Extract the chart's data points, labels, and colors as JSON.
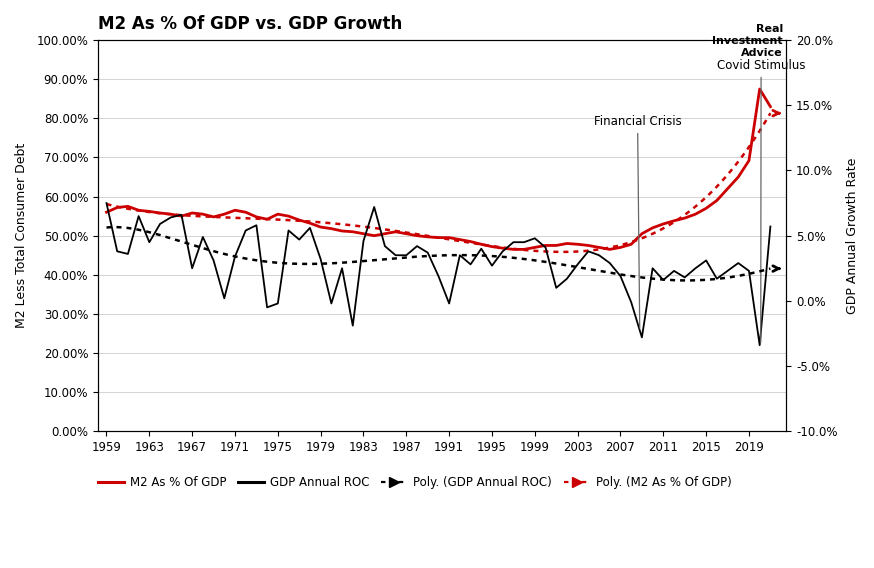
{
  "title": "M2 As % Of GDP vs. GDP Growth",
  "ylabel_left": "M2 Less Total Consumer Debt",
  "ylabel_right": "GDP Annual Growth Rate",
  "background_color": "#ffffff",
  "years": [
    1959,
    1960,
    1961,
    1962,
    1963,
    1964,
    1965,
    1966,
    1967,
    1968,
    1969,
    1970,
    1971,
    1972,
    1973,
    1974,
    1975,
    1976,
    1977,
    1978,
    1979,
    1980,
    1981,
    1982,
    1983,
    1984,
    1985,
    1986,
    1987,
    1988,
    1989,
    1990,
    1991,
    1992,
    1993,
    1994,
    1995,
    1996,
    1997,
    1998,
    1999,
    2000,
    2001,
    2002,
    2003,
    2004,
    2005,
    2006,
    2007,
    2008,
    2009,
    2010,
    2011,
    2012,
    2013,
    2014,
    2015,
    2016,
    2017,
    2018,
    2019,
    2020,
    2021
  ],
  "m2_pct_gdp": [
    0.56,
    0.572,
    0.575,
    0.565,
    0.562,
    0.558,
    0.555,
    0.55,
    0.558,
    0.555,
    0.548,
    0.555,
    0.565,
    0.56,
    0.548,
    0.542,
    0.555,
    0.55,
    0.54,
    0.532,
    0.522,
    0.518,
    0.512,
    0.51,
    0.505,
    0.5,
    0.505,
    0.51,
    0.505,
    0.5,
    0.497,
    0.495,
    0.495,
    0.49,
    0.485,
    0.478,
    0.472,
    0.468,
    0.465,
    0.465,
    0.47,
    0.475,
    0.475,
    0.48,
    0.478,
    0.475,
    0.47,
    0.465,
    0.47,
    0.478,
    0.505,
    0.52,
    0.53,
    0.538,
    0.545,
    0.555,
    0.57,
    0.59,
    0.62,
    0.65,
    0.692,
    0.875,
    0.83
  ],
  "gdp_roc_pct": [
    7.5,
    3.8,
    3.6,
    6.5,
    4.5,
    5.9,
    6.4,
    6.6,
    2.5,
    4.9,
    3.1,
    0.2,
    3.4,
    5.4,
    5.8,
    -0.5,
    -0.2,
    5.4,
    4.7,
    5.6,
    3.2,
    -0.2,
    2.5,
    -1.9,
    4.6,
    7.2,
    4.2,
    3.5,
    3.5,
    4.2,
    3.7,
    1.9,
    -0.2,
    3.5,
    2.8,
    4.0,
    2.7,
    3.8,
    4.5,
    4.5,
    4.8,
    4.1,
    1.0,
    1.7,
    2.8,
    3.8,
    3.5,
    2.9,
    1.9,
    -0.1,
    -2.8,
    2.5,
    1.6,
    2.3,
    1.8,
    2.5,
    3.1,
    1.7,
    2.3,
    2.9,
    2.3,
    -3.4,
    5.7
  ],
  "xtick_years": [
    1959,
    1963,
    1967,
    1971,
    1975,
    1979,
    1983,
    1987,
    1991,
    1995,
    1999,
    2003,
    2007,
    2011,
    2015,
    2019
  ],
  "ylim_left": [
    0.0,
    1.0
  ],
  "ylim_right": [
    -0.1,
    0.2
  ],
  "yticks_left": [
    0.0,
    0.1,
    0.2,
    0.3,
    0.4,
    0.5,
    0.6,
    0.7,
    0.8,
    0.9,
    1.0
  ],
  "ytick_labels_left": [
    "0.00%",
    "10.00%",
    "20.00%",
    "30.00%",
    "40.00%",
    "50.00%",
    "60.00%",
    "70.00%",
    "80.00%",
    "90.00%",
    "100.00%"
  ],
  "yticks_right": [
    -0.1,
    -0.05,
    0.0,
    0.05,
    0.1,
    0.15,
    0.2
  ],
  "ytick_labels_right": [
    "-10.0%",
    "-5.0%",
    "0.0%",
    "5.0%",
    "10.0%",
    "15.0%",
    "20.0%"
  ],
  "m2_color": "#cc0000",
  "gdp_color": "#000000",
  "annotation_covid": "Covid Stimulus",
  "annotation_crisis": "Financial Crisis",
  "logo_text": "Real\nInvestment\nAdvice"
}
